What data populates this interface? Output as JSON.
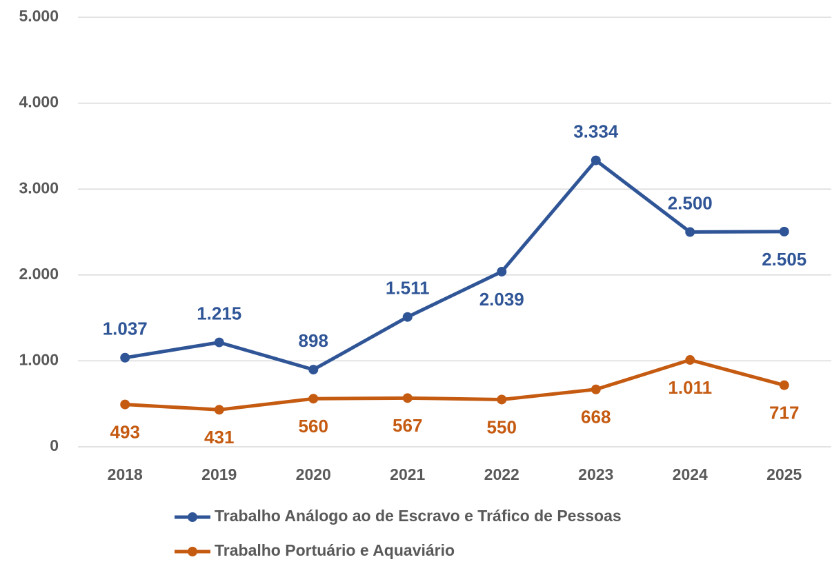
{
  "chart_data": {
    "type": "line",
    "categories": [
      "2018",
      "2019",
      "2020",
      "2021",
      "2022",
      "2023",
      "2024",
      "2025"
    ],
    "series": [
      {
        "name": "Trabalho Análogo ao de Escravo e Tráfico de Pessoas",
        "color": "#2f5597",
        "values": [
          1037,
          1215,
          898,
          1511,
          2039,
          3334,
          2500,
          2505
        ],
        "value_labels": [
          "1.037",
          "1.215",
          "898",
          "1.511",
          "2.039",
          "3.334",
          "2.500",
          "2.505"
        ]
      },
      {
        "name": "Trabalho Portuário e Aquaviário",
        "color": "#c55a11",
        "values": [
          493,
          431,
          560,
          567,
          550,
          668,
          1011,
          717
        ],
        "value_labels": [
          "493",
          "431",
          "560",
          "567",
          "550",
          "668",
          "1.011",
          "717"
        ]
      }
    ],
    "ylim": [
      0,
      5000
    ],
    "yticks": [
      0,
      {
        "value": 1000,
        "label": "1.000"
      },
      {
        "value": 2000,
        "label": "2.000"
      },
      {
        "value": 3000,
        "label": "3.000"
      },
      {
        "value": 4000,
        "label": "4.000"
      },
      {
        "value": 5000,
        "label": "5.000"
      }
    ],
    "grid": true,
    "legend": "bottom"
  }
}
